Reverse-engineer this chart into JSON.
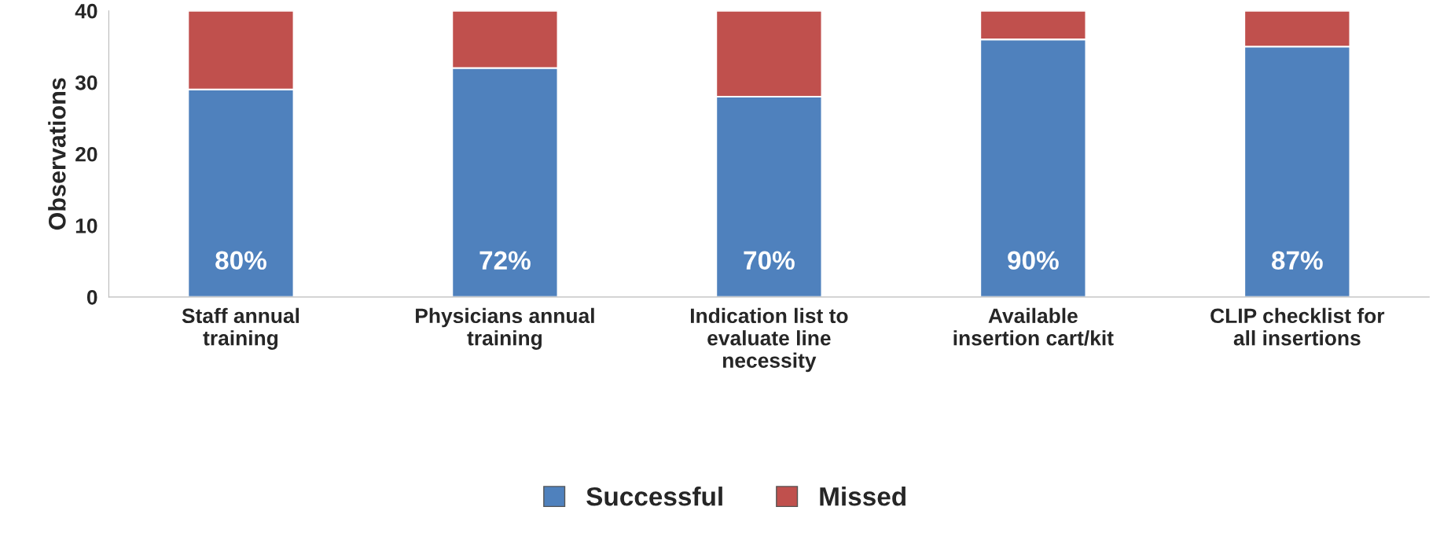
{
  "chart_data": {
    "type": "bar",
    "stacked": true,
    "categories": [
      "Staff annual training",
      "Physicians annual training",
      "Indication list to evaluate line necessity",
      "Available insertion cart/kit",
      "CLIP checklist for all insertions"
    ],
    "series": [
      {
        "name": "Successful",
        "color": "#4f81bd",
        "values": [
          29,
          32,
          28,
          36,
          35
        ]
      },
      {
        "name": "Missed",
        "color": "#c0504d",
        "values": [
          11,
          8,
          12,
          4,
          5
        ]
      }
    ],
    "annotations": [
      "80%",
      "72%",
      "70%",
      "90%",
      "87%"
    ],
    "ylabel": "Observations",
    "ylim": [
      0,
      40
    ],
    "yticks": [
      0,
      10,
      20,
      30,
      40
    ],
    "legend": "bottom",
    "grid": false
  }
}
